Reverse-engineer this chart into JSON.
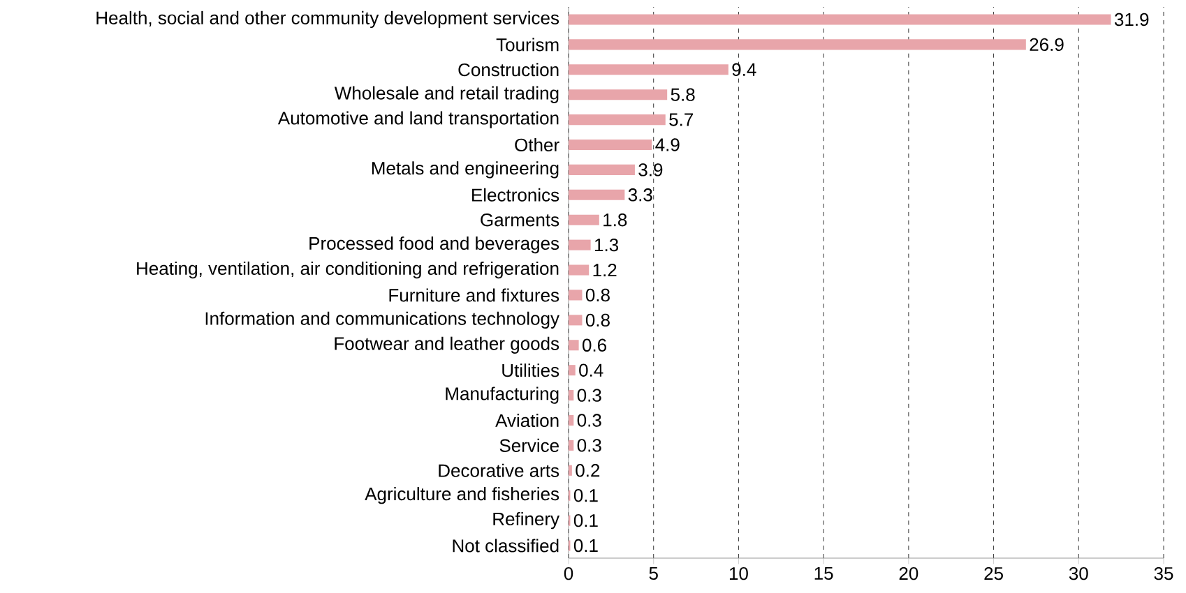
{
  "chart_data": {
    "type": "bar",
    "orientation": "horizontal",
    "categories": [
      "Health, social and other community development services",
      "Tourism",
      "Construction",
      "Wholesale and retail trading",
      "Automotive and land transportation",
      "Other",
      "Metals and engineering",
      "Electronics",
      "Garments",
      "Processed food and beverages",
      "Heating, ventilation, air conditioning and refrigeration",
      "Furniture and fixtures",
      "Information and communications technology",
      "Footwear and leather goods",
      "Utilities",
      "Manufacturing",
      "Aviation",
      "Service",
      "Decorative arts",
      "Agriculture and fisheries",
      "Refinery",
      "Not classified"
    ],
    "values": [
      31.9,
      26.9,
      9.4,
      5.8,
      5.7,
      4.9,
      3.9,
      3.3,
      1.8,
      1.3,
      1.2,
      0.8,
      0.8,
      0.6,
      0.4,
      0.3,
      0.3,
      0.3,
      0.2,
      0.1,
      0.1,
      0.1
    ],
    "color": "#e8a5aa",
    "xlim": [
      0,
      35
    ],
    "xticks": [
      0,
      5,
      10,
      15,
      20,
      25,
      30,
      35
    ],
    "grid": "x",
    "data_labels": true
  }
}
